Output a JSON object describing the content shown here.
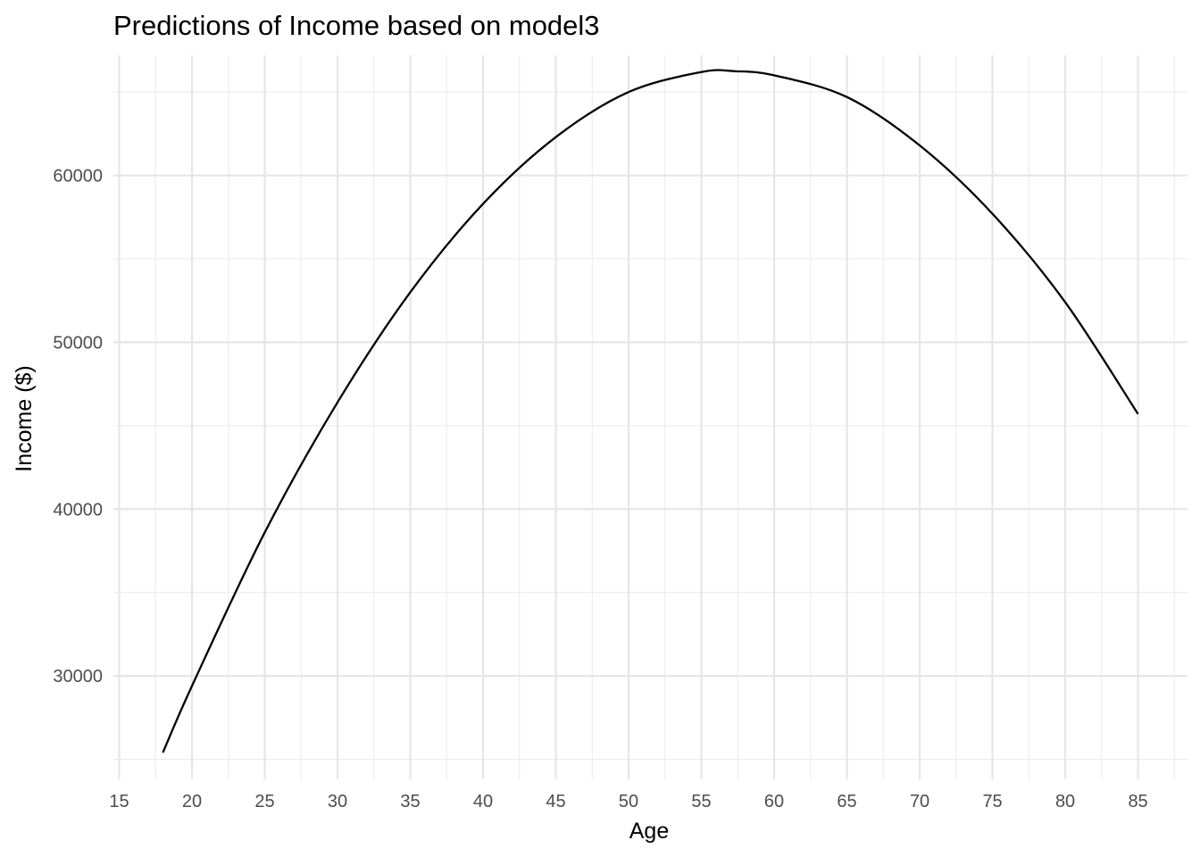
{
  "chart_data": {
    "type": "line",
    "title": "Predictions of Income based on model3",
    "xlabel": "Age",
    "ylabel": "Income ($)",
    "xlim": [
      14.6,
      88.4
    ],
    "ylim": [
      23800,
      67200
    ],
    "x_ticks": [
      15,
      20,
      25,
      30,
      35,
      40,
      45,
      50,
      55,
      60,
      65,
      70,
      75,
      80,
      85
    ],
    "y_ticks": [
      30000,
      40000,
      50000,
      60000
    ],
    "grid": true,
    "legend": "none",
    "series": [
      {
        "color": "#000000",
        "x": [
          18,
          20,
          25,
          30,
          35,
          40,
          45,
          50,
          55,
          57.3,
          60,
          65,
          70,
          75,
          80,
          85
        ],
        "y": [
          25400,
          29400,
          38600,
          46400,
          53000,
          58300,
          62300,
          65000,
          66200,
          66250,
          66000,
          64700,
          61800,
          57700,
          52400,
          45700
        ]
      }
    ]
  }
}
